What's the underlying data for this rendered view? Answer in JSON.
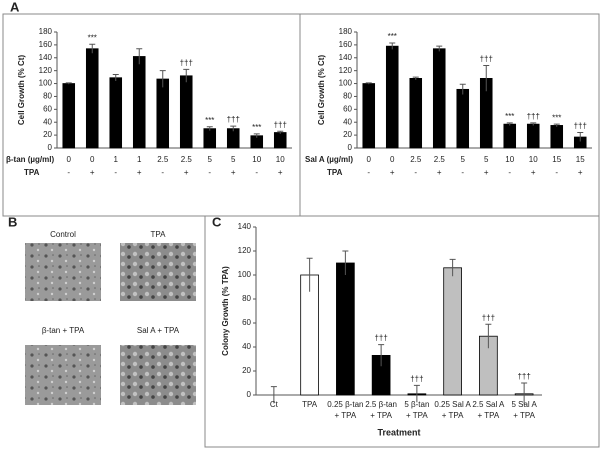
{
  "panel_labels": [
    "A",
    "B",
    "C"
  ],
  "micrographs": {
    "labels": [
      "Control",
      "TPA",
      "β-tan + TPA",
      "Sal A + TPA"
    ]
  },
  "chart_data": [
    {
      "type": "bar",
      "y_label": "Cell Growth (% Ct)",
      "row_labels": [
        "β-tan (µg/ml)",
        "TPA"
      ],
      "categories": [
        "0",
        "0",
        "1",
        "1",
        "2.5",
        "2.5",
        "5",
        "5",
        "10",
        "10"
      ],
      "tpa": [
        "-",
        "+",
        "-",
        "+",
        "-",
        "+",
        "-",
        "+",
        "-",
        "+"
      ],
      "values": [
        100,
        154,
        109,
        142,
        107,
        112,
        30,
        30,
        19,
        24
      ],
      "errors": [
        1,
        7,
        5,
        12,
        13,
        10,
        3,
        4,
        3,
        2
      ],
      "color": "#000000",
      "annotations": [
        {
          "index": 1,
          "text": "***"
        },
        {
          "index": 5,
          "text": "†††"
        },
        {
          "index": 6,
          "text": "***"
        },
        {
          "index": 7,
          "text": "†††"
        },
        {
          "index": 8,
          "text": "***"
        },
        {
          "index": 9,
          "text": "†††"
        }
      ],
      "ylim": [
        0,
        180
      ],
      "yticks": [
        0,
        20,
        40,
        60,
        80,
        100,
        120,
        140,
        160,
        180
      ]
    },
    {
      "type": "bar",
      "y_label": "Cell Growth (% Ct)",
      "row_labels": [
        "Sal A (µg/ml)",
        "TPA"
      ],
      "categories": [
        "0",
        "0",
        "2.5",
        "2.5",
        "5",
        "5",
        "10",
        "10",
        "15",
        "15"
      ],
      "tpa": [
        "-",
        "+",
        "-",
        "+",
        "-",
        "+",
        "-",
        "+",
        "-",
        "+"
      ],
      "values": [
        100,
        158,
        108,
        154,
        91,
        108,
        37,
        37,
        35,
        17
      ],
      "errors": [
        1,
        5,
        2,
        4,
        8,
        20,
        2,
        2,
        2,
        7
      ],
      "color": "#000000",
      "annotations": [
        {
          "index": 1,
          "text": "***"
        },
        {
          "index": 5,
          "text": "†††"
        },
        {
          "index": 6,
          "text": "***"
        },
        {
          "index": 7,
          "text": "†††"
        },
        {
          "index": 8,
          "text": "***"
        },
        {
          "index": 9,
          "text": "†††"
        }
      ],
      "ylim": [
        0,
        180
      ],
      "yticks": [
        0,
        20,
        40,
        60,
        80,
        100,
        120,
        140,
        160,
        180
      ]
    },
    {
      "type": "bar",
      "y_label": "Colony Growth (% TPA)",
      "x_label": "Treatment",
      "categories": [
        [
          "Ct"
        ],
        [
          "TPA"
        ],
        [
          "0.25 β-tan",
          "+ TPA"
        ],
        [
          "2.5 β-tan",
          "+ TPA"
        ],
        [
          "5 β-tan",
          "+ TPA"
        ],
        [
          "0.25 Sal A",
          "+ TPA"
        ],
        [
          "2.5 Sal A",
          "+ TPA"
        ],
        [
          "5 Sal A",
          "+ TPA"
        ]
      ],
      "values": [
        0,
        100,
        110,
        33,
        1,
        106,
        49,
        1
      ],
      "errors": [
        7,
        14,
        10,
        9,
        7,
        7,
        10,
        9
      ],
      "colors": [
        "#ffffff",
        "#ffffff",
        "#000000",
        "#000000",
        "#000000",
        "#bfbfbf",
        "#bfbfbf",
        "#bfbfbf"
      ],
      "annotations": [
        {
          "index": 3,
          "text": "†††"
        },
        {
          "index": 4,
          "text": "†††"
        },
        {
          "index": 6,
          "text": "†††"
        },
        {
          "index": 7,
          "text": "†††"
        }
      ],
      "ylim": [
        0,
        140
      ],
      "yticks": [
        0,
        20,
        40,
        60,
        80,
        100,
        120,
        140
      ]
    }
  ]
}
